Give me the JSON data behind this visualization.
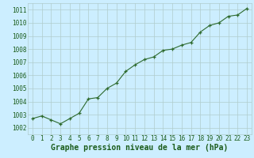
{
  "x": [
    0,
    1,
    2,
    3,
    4,
    5,
    6,
    7,
    8,
    9,
    10,
    11,
    12,
    13,
    14,
    15,
    16,
    17,
    18,
    19,
    20,
    21,
    22,
    23
  ],
  "y": [
    1002.7,
    1002.9,
    1002.6,
    1002.3,
    1002.7,
    1003.1,
    1004.2,
    1004.3,
    1005.0,
    1005.4,
    1006.3,
    1006.8,
    1007.2,
    1007.4,
    1007.9,
    1008.0,
    1008.3,
    1008.5,
    1009.3,
    1009.8,
    1010.0,
    1010.5,
    1010.6,
    1011.1
  ],
  "line_color": "#2d6a2d",
  "marker_color": "#2d6a2d",
  "bg_color": "#cceeff",
  "grid_color": "#b0cccc",
  "xlabel": "Graphe pression niveau de la mer (hPa)",
  "ylim_min": 1001.5,
  "ylim_max": 1011.5,
  "yticks": [
    1002,
    1003,
    1004,
    1005,
    1006,
    1007,
    1008,
    1009,
    1010,
    1011
  ],
  "xticks": [
    0,
    1,
    2,
    3,
    4,
    5,
    6,
    7,
    8,
    9,
    10,
    11,
    12,
    13,
    14,
    15,
    16,
    17,
    18,
    19,
    20,
    21,
    22,
    23
  ],
  "title_fontsize": 7,
  "tick_fontsize": 5.5,
  "title_color": "#1a5c1a",
  "tick_color": "#1a5c1a"
}
